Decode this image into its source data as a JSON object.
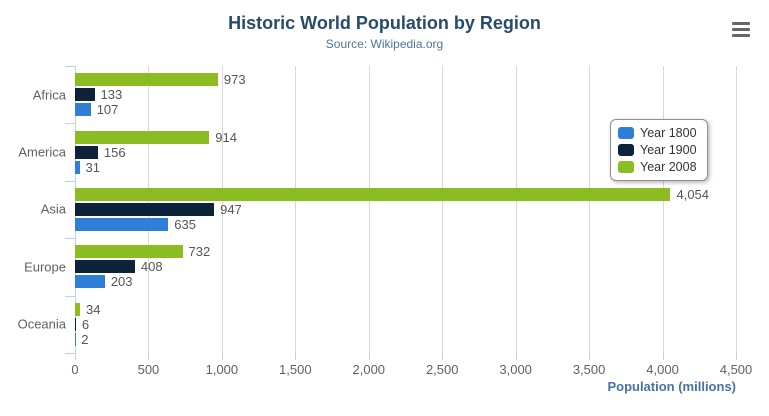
{
  "header": {
    "title": "Historic World Population by Region",
    "subtitle": "Source: Wikipedia.org"
  },
  "toolbar": {
    "context_menu_icon": "hamburger-icon"
  },
  "chart_data": {
    "type": "bar",
    "orientation": "horizontal",
    "title": "Historic World Population by Region",
    "subtitle": "Source: Wikipedia.org",
    "categories": [
      "Africa",
      "America",
      "Asia",
      "Europe",
      "Oceania"
    ],
    "series": [
      {
        "name": "Year 1800",
        "color": "#2f7ed8",
        "values": [
          107,
          31,
          635,
          203,
          2
        ]
      },
      {
        "name": "Year 1900",
        "color": "#0d233a",
        "values": [
          133,
          156,
          947,
          408,
          6
        ]
      },
      {
        "name": "Year 2008",
        "color": "#8bbc21",
        "values": [
          973,
          914,
          4054,
          732,
          34
        ]
      }
    ],
    "bar_order_top_to_bottom": [
      "Year 2008",
      "Year 1900",
      "Year 1800"
    ],
    "xlabel": "Population (millions)",
    "ylabel": "",
    "xlim": [
      0,
      4500
    ],
    "x_tick_step": 500,
    "x_tick_labels": [
      "0",
      "500",
      "1,000",
      "1,500",
      "2,000",
      "2,500",
      "3,000",
      "3,500",
      "4,000",
      "4,500"
    ],
    "grid": true,
    "data_labels": true,
    "legend_position": "right",
    "colors": {
      "title": "#274b6d",
      "subtitle": "#4d759e",
      "gridline": "#d8d8d8",
      "axis_line": "#c0d0e0",
      "tick_label": "#606060",
      "data_label": "#555555",
      "axis_title": "#4572a7",
      "legend_border": "#909090",
      "legend_text": "#333333"
    }
  }
}
